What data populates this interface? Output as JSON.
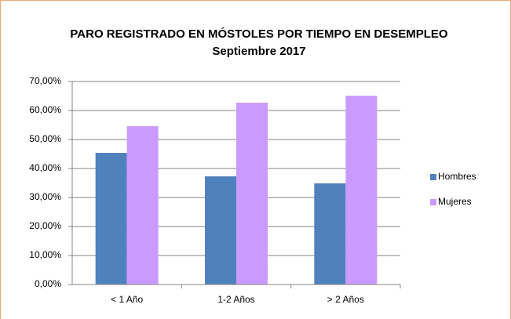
{
  "chart_data": {
    "type": "bar",
    "title": "PARO REGISTRADO EN MÓSTOLES POR TIEMPO EN DESEMPLEO",
    "subtitle": "Septiembre 2017",
    "categories": [
      "< 1 Año",
      "1-2 Años",
      "> 2 Años"
    ],
    "series": [
      {
        "name": "Hombres",
        "color": "#4f81bd",
        "values": [
          45.4,
          37.3,
          34.9
        ]
      },
      {
        "name": "Mujeres",
        "color": "#cc99ff",
        "values": [
          54.6,
          62.7,
          65.1
        ]
      }
    ],
    "ylim": [
      0,
      70
    ],
    "yticks": [
      {
        "value": 0,
        "label": "0,00%"
      },
      {
        "value": 10,
        "label": "10,00%"
      },
      {
        "value": 20,
        "label": "20,00%"
      },
      {
        "value": 30,
        "label": "30,00%"
      },
      {
        "value": 40,
        "label": "40,00%"
      },
      {
        "value": 50,
        "label": "50,00%"
      },
      {
        "value": 60,
        "label": "60,00%"
      },
      {
        "value": 70,
        "label": "70,00%"
      }
    ],
    "grid": true,
    "legend": "right"
  }
}
